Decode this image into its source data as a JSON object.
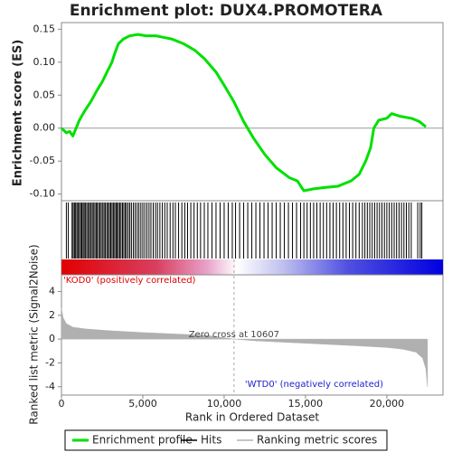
{
  "chart_data": {
    "type": "enrichment",
    "title": "Enrichment plot: DUX4.PROMOTERA",
    "xlabel": "Rank in Ordered Dataset",
    "xlim": [
      0,
      23450
    ],
    "xticks": [
      0,
      {
        "value": 5000,
        "label": "5,000"
      },
      {
        "value": 10000,
        "label": "10,000"
      },
      {
        "value": 15000,
        "label": "15,000"
      },
      {
        "value": 20000,
        "label": "20,000"
      }
    ],
    "es": {
      "ylabel": "Enrichment score (ES)",
      "name": "Enrichment profile",
      "color": "#00e000",
      "ylim": [
        -0.11,
        0.16
      ],
      "yticks": [
        {
          "value": -0.1,
          "label": "-0.10"
        },
        -0.05,
        {
          "value": 0,
          "label": "0.00"
        },
        0.05,
        {
          "value": 0.1,
          "label": "0.10"
        },
        0.15
      ],
      "x": [
        0,
        300,
        500,
        700,
        900,
        1100,
        1400,
        1800,
        2200,
        2500,
        2800,
        3100,
        3300,
        3500,
        3800,
        4200,
        4700,
        5200,
        5800,
        6200,
        6800,
        7500,
        8200,
        8800,
        9500,
        10000,
        10600,
        11200,
        11800,
        12500,
        13200,
        14000,
        14500,
        14900,
        15500,
        16200,
        17000,
        17800,
        18300,
        18700,
        19000,
        19200,
        19500,
        20000,
        20300,
        20800,
        21500,
        22000,
        22400
      ],
      "values": [
        0.0,
        -0.007,
        -0.005,
        -0.012,
        0.0,
        0.012,
        0.025,
        0.04,
        0.058,
        0.07,
        0.085,
        0.1,
        0.115,
        0.128,
        0.135,
        0.14,
        0.142,
        0.14,
        0.14,
        0.138,
        0.135,
        0.128,
        0.118,
        0.105,
        0.085,
        0.065,
        0.04,
        0.01,
        -0.015,
        -0.04,
        -0.06,
        -0.075,
        -0.08,
        -0.095,
        -0.092,
        -0.09,
        -0.088,
        -0.08,
        -0.07,
        -0.05,
        -0.03,
        0.0,
        0.012,
        0.015,
        0.022,
        0.018,
        0.015,
        0.01,
        0.002
      ]
    },
    "hits": {
      "name": "Hits",
      "color": "#000000",
      "x": [
        300,
        420,
        650,
        720,
        800,
        870,
        950,
        1020,
        1100,
        1180,
        1250,
        1330,
        1400,
        1480,
        1560,
        1650,
        1720,
        1800,
        1890,
        1960,
        2050,
        2130,
        2200,
        2290,
        2370,
        2450,
        2540,
        2620,
        2700,
        2790,
        2870,
        2950,
        3030,
        3110,
        3190,
        3270,
        3350,
        3420,
        3500,
        3580,
        3660,
        3750,
        3830,
        3920,
        4000,
        4100,
        4200,
        4300,
        4420,
        4530,
        4650,
        4760,
        4880,
        5000,
        5120,
        5250,
        5380,
        5500,
        5640,
        5780,
        5900,
        6050,
        6200,
        6350,
        6500,
        6680,
        6850,
        7000,
        7200,
        7400,
        7580,
        7750,
        7950,
        8150,
        8350,
        8550,
        8780,
        9000,
        9250,
        9500,
        9750,
        10000,
        10250,
        10500,
        10700,
        10950,
        11200,
        11450,
        11700,
        11950,
        12200,
        12450,
        12700,
        12950,
        13200,
        13450,
        13700,
        13950,
        14200,
        14450,
        14700,
        14900,
        15100,
        15300,
        15500,
        15700,
        15900,
        16100,
        16300,
        16500,
        16700,
        16900,
        17100,
        17300,
        17500,
        17700,
        17900,
        18100,
        18300,
        18500,
        18650,
        18800,
        18950,
        19100,
        19250,
        19400,
        19550,
        19700,
        19850,
        20000,
        20150,
        20300,
        20450,
        20600,
        20750,
        20900,
        21050,
        21200,
        21350,
        21500,
        21900,
        22050,
        22150
      ]
    },
    "metric": {
      "ylabel": "Ranked list metric (Signal2Noise)",
      "name": "Ranking metric scores",
      "color": "#b0b0b0",
      "ylim": [
        -4.7,
        5.4
      ],
      "yticks": [
        -4,
        -2,
        0,
        2,
        4
      ],
      "x": [
        0,
        100,
        300,
        700,
        1500,
        3000,
        5000,
        7500,
        9000,
        10607,
        12000,
        15000,
        18000,
        20000,
        21000,
        21800,
        22200,
        22400,
        22500
      ],
      "values": [
        2.6,
        1.8,
        1.3,
        1.0,
        0.85,
        0.7,
        0.55,
        0.4,
        0.3,
        0,
        -0.15,
        -0.35,
        -0.55,
        -0.7,
        -0.85,
        -1.1,
        -1.6,
        -2.5,
        -4.0
      ]
    },
    "annotations": {
      "positive": "'KOD0' (positively correlated)",
      "negative": "'WTD0' (negatively correlated)",
      "zero_cross_label": "Zero cross at 10607",
      "zero_cross": 10607
    }
  }
}
